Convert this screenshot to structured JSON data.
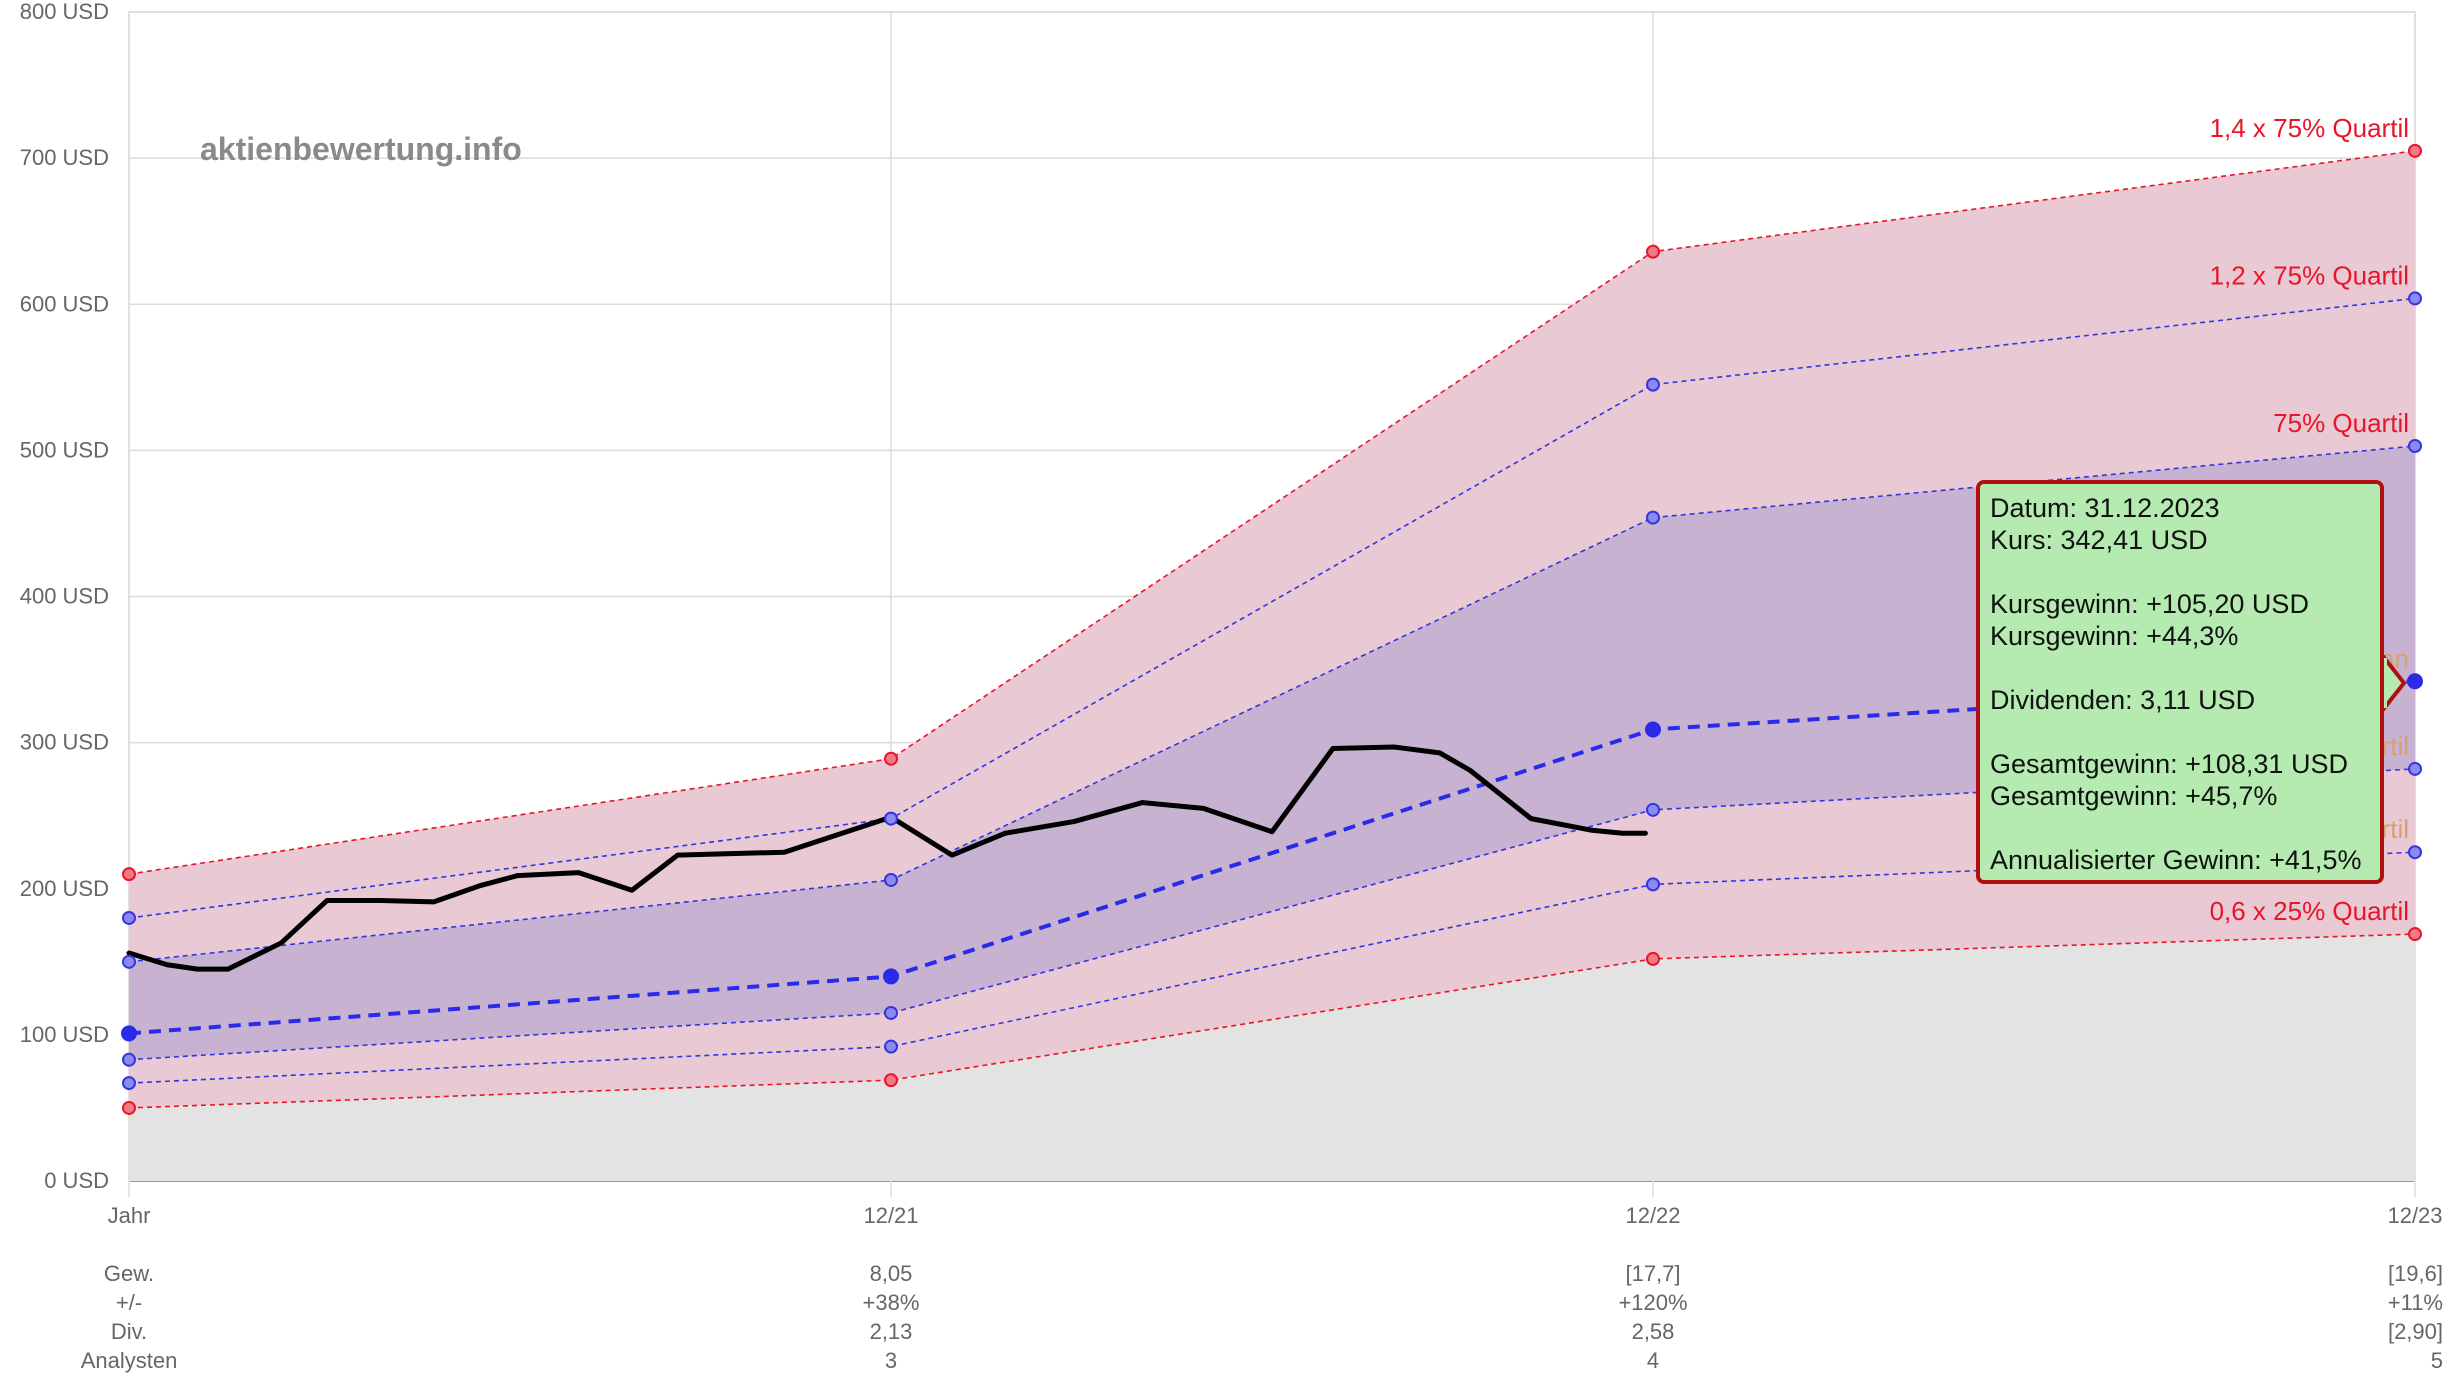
{
  "watermark": "aktienbewertung.info",
  "chart_data": {
    "type": "line",
    "y_unit": "USD",
    "ylim": [
      0,
      800
    ],
    "y_ticks": [
      "0 USD",
      "100 USD",
      "200 USD",
      "300 USD",
      "400 USD",
      "500 USD",
      "600 USD",
      "700 USD",
      "800 USD"
    ],
    "x_ticks": [
      "Jahr",
      "12/21",
      "12/22",
      "12/23"
    ],
    "grid": true,
    "bands": [
      {
        "name": "1,4 x 75% Quartil",
        "color": "#e8152a",
        "values": [
          210,
          289,
          636,
          705
        ]
      },
      {
        "name": "1,2 x 75% Quartil",
        "color": "#3535e0",
        "values": [
          180,
          248,
          545,
          604
        ]
      },
      {
        "name": "75% Quartil",
        "color": "#3535e0",
        "values": [
          150,
          206,
          454,
          503
        ]
      },
      {
        "name": "Median",
        "color": "#2a2ae8",
        "values": [
          101,
          140,
          309,
          342
        ]
      },
      {
        "name": "25% Quartil",
        "color": "#3535e0",
        "values": [
          83,
          115,
          254,
          282
        ]
      },
      {
        "name": "0,8 x 25% Quartil",
        "color": "#3535e0",
        "values": [
          67,
          92,
          203,
          225
        ]
      },
      {
        "name": "0,6 x 25% Quartil",
        "color": "#e8152a",
        "values": [
          50,
          69,
          152,
          169
        ]
      }
    ],
    "price_series": {
      "x": [
        0,
        0.05,
        0.09,
        0.13,
        0.2,
        0.26,
        0.33,
        0.4,
        0.46,
        0.51,
        0.59,
        0.66,
        0.72,
        0.79,
        0.86,
        1.0,
        1.08,
        1.15,
        1.24,
        1.33,
        1.41,
        1.5,
        1.58,
        1.66,
        1.72,
        1.76,
        1.84,
        1.92,
        1.96,
        1.99
      ],
      "y": [
        156,
        148,
        145,
        145,
        163,
        192,
        192,
        191,
        202,
        209,
        211,
        199,
        223,
        224,
        225,
        249,
        223,
        238,
        246,
        259,
        255,
        239,
        296,
        297,
        293,
        281,
        248,
        240,
        238,
        238
      ]
    },
    "table": {
      "rows": [
        {
          "label": "Gew.",
          "values": [
            "8,05",
            "[17,7]",
            "[19,6]"
          ]
        },
        {
          "label": "+/-",
          "values": [
            "+38%",
            "+120%",
            "+11%"
          ]
        },
        {
          "label": "Div.",
          "values": [
            "2,13",
            "2,58",
            "[2,90]"
          ]
        },
        {
          "label": "Analysten",
          "values": [
            "3",
            "4",
            "5"
          ]
        }
      ]
    }
  },
  "tooltip": {
    "datum": "Datum: 31.12.2023",
    "kurs": "Kurs: 342,41 USD",
    "kursgewinn_abs": "Kursgewinn: +105,20 USD",
    "kursgewinn_pct": "Kursgewinn: +44,3%",
    "dividenden": "Dividenden: 3,11 USD",
    "gesamtgewinn_abs": "Gesamtgewinn: +108,31 USD",
    "gesamtgewinn_pct": "Gesamtgewinn: +45,7%",
    "annualisiert": "Annualisierter Gewinn: +41,5%"
  }
}
